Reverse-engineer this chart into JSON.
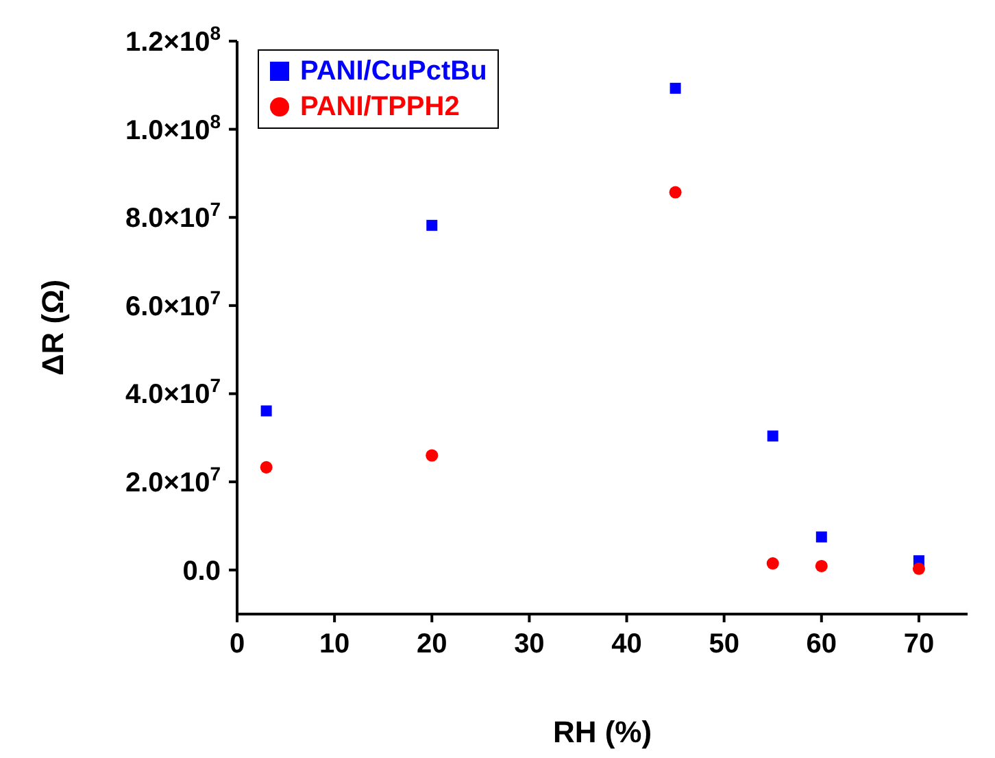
{
  "chart_data": {
    "type": "scatter",
    "xlabel": "RH (%)",
    "ylabel": "ΔR (Ω)",
    "xlim": [
      0,
      75
    ],
    "xticks": [
      0,
      10,
      20,
      30,
      40,
      50,
      60,
      70
    ],
    "ylim": [
      -10000000,
      120000000
    ],
    "yticks": [
      {
        "value": 0,
        "label": "0.0"
      },
      {
        "value": 20000000,
        "label": "2.0×10$^{7}$"
      },
      {
        "value": 40000000,
        "label": "4.0×10$^{7}$"
      },
      {
        "value": 60000000,
        "label": "6.0×10$^{7}$"
      },
      {
        "value": 80000000,
        "label": "8.0×10$^{7}$"
      },
      {
        "value": 100000000,
        "label": "1.0×10$^{8}$"
      },
      {
        "value": 120000000,
        "label": "1.2×10$^{8}$"
      }
    ],
    "x": [
      3,
      20,
      45,
      55,
      60,
      70
    ],
    "series": [
      {
        "name": "PANI/CuPctBu",
        "color": "#0000ff",
        "marker": "square",
        "values": [
          36100000,
          78200000,
          109300000,
          30400000,
          7500000,
          2100000
        ]
      },
      {
        "name": "PANI/TPPH2",
        "color": "#ff0000",
        "marker": "circle",
        "values": [
          23300000,
          26000000,
          85700000,
          1500000,
          900000,
          300000
        ]
      }
    ],
    "grid": false,
    "legend": "top left"
  }
}
